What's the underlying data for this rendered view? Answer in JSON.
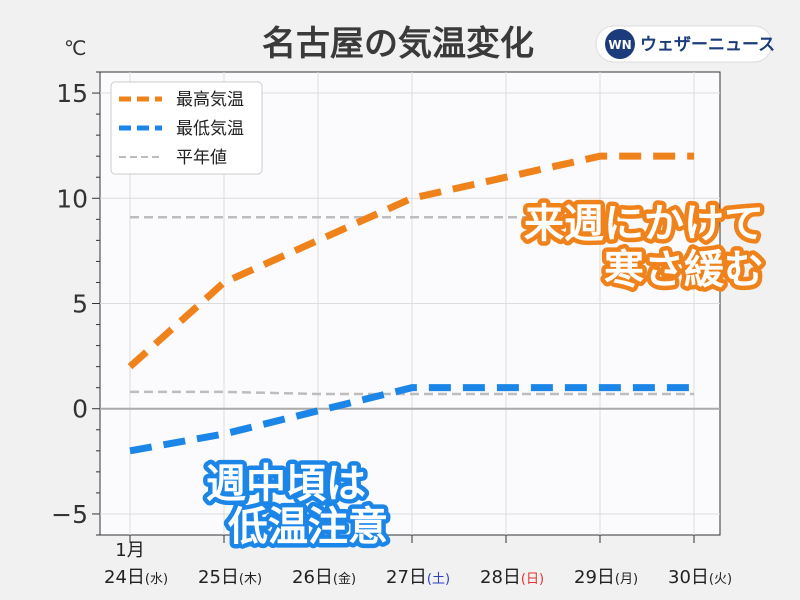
{
  "header": {
    "title": "名古屋の気温変化",
    "unit_label": "℃",
    "brand_name": "ウェザーニュース",
    "brand_mark": "WN"
  },
  "colors": {
    "high": "#f0821c",
    "low": "#1b86e8",
    "normal": "#bdbdbd",
    "saturday": "#2f3fc4",
    "sunday": "#e23333"
  },
  "chart_data": {
    "type": "line",
    "title": "名古屋の気温変化",
    "ylabel": "℃",
    "ylim": [
      -6,
      16
    ],
    "yticks": [
      "15",
      "10",
      "5",
      "0",
      "−5"
    ],
    "ytick_values": [
      15,
      10,
      5,
      0,
      -5
    ],
    "grid": true,
    "legend_position": "top-left",
    "month_label": "1月",
    "categories": [
      "24日(水)",
      "25日(木)",
      "26日(金)",
      "27日(土)",
      "28日(日)",
      "29日(月)",
      "30日(火)"
    ],
    "x_days": [
      "24日",
      "25日",
      "26日",
      "27日",
      "28日",
      "29日",
      "30日"
    ],
    "x_weekdays": [
      "(水)",
      "(木)",
      "(金)",
      "(土)",
      "(日)",
      "(月)",
      "(火)"
    ],
    "series": [
      {
        "name": "最高気温",
        "values": [
          2,
          6,
          8,
          10,
          11,
          12,
          12
        ]
      },
      {
        "name": "最低気温",
        "values": [
          -2,
          -1.2,
          -0.1,
          1,
          1,
          1,
          1
        ]
      },
      {
        "name": "平年値",
        "values": [
          9.1,
          9.1,
          9.1,
          9.1,
          9.1,
          9.1,
          9.1
        ]
      },
      {
        "name": "平年値",
        "values": [
          0.8,
          0.8,
          0.7,
          0.7,
          0.7,
          0.7,
          0.7
        ]
      }
    ],
    "annotations": [
      {
        "lines": [
          "来週にかけて",
          "寒さ緩む"
        ]
      },
      {
        "lines": [
          "週中頃は",
          "低温注意"
        ]
      }
    ]
  }
}
